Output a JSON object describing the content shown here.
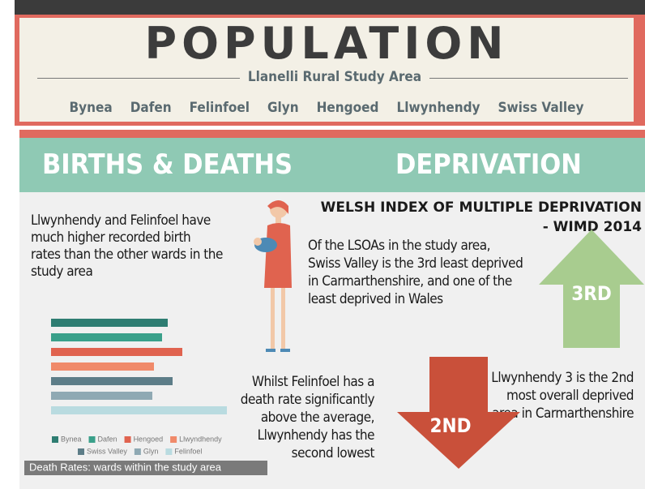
{
  "header": {
    "title": "POPULATION",
    "subtitle": "Llanelli Rural Study Area",
    "wards": [
      "Bynea",
      "Dafen",
      "Felinfoel",
      "Glyn",
      "Hengoed",
      "Llwynhendy",
      "Swiss Valley"
    ]
  },
  "births_deaths": {
    "heading": "BIRTHS & DEATHS",
    "birth_text": [
      "Llwynhendy and Felinfoel have",
      "much higher recorded birth",
      "rates than the other wards in the",
      "study area"
    ],
    "death_text": [
      "Whilst Felinfoel has a",
      "death rate significantly",
      "above the average,",
      "Llwynhendy has the",
      "second lowest"
    ]
  },
  "deprivation": {
    "heading": "DEPRIVATION",
    "index_title": [
      "WELSH INDEX OF MULTIPLE DEPRIVATION",
      "- WIMD 2014"
    ],
    "text_1": [
      "Of the LSOAs in the study area,",
      "Swiss Valley is the 3rd least deprived",
      "in Carmarthenshire, and one of the",
      "least deprived in Wales"
    ],
    "arrow_up": "3RD",
    "arrow_down": "2ND",
    "text_2": [
      "Llwynhendy 3 is the 2nd",
      "most overall deprived",
      "area in Carmarthenshire"
    ]
  },
  "chart_data": {
    "type": "hbar",
    "title": "Death Rates: wards within the study area",
    "categories": [
      "Bynea",
      "Dafen",
      "Hengoed",
      "Llwyndhendy",
      "Swiss Valley",
      "Glyn",
      "Felinfoel"
    ],
    "values": [
      144,
      137,
      162,
      127,
      150,
      125,
      217
    ],
    "colors": [
      "#2e7d72",
      "#3aa08a",
      "#e0634f",
      "#f08a6a",
      "#5d7d88",
      "#8fa9b3",
      "#b9dbe0"
    ],
    "xlim": [
      0,
      250
    ]
  }
}
